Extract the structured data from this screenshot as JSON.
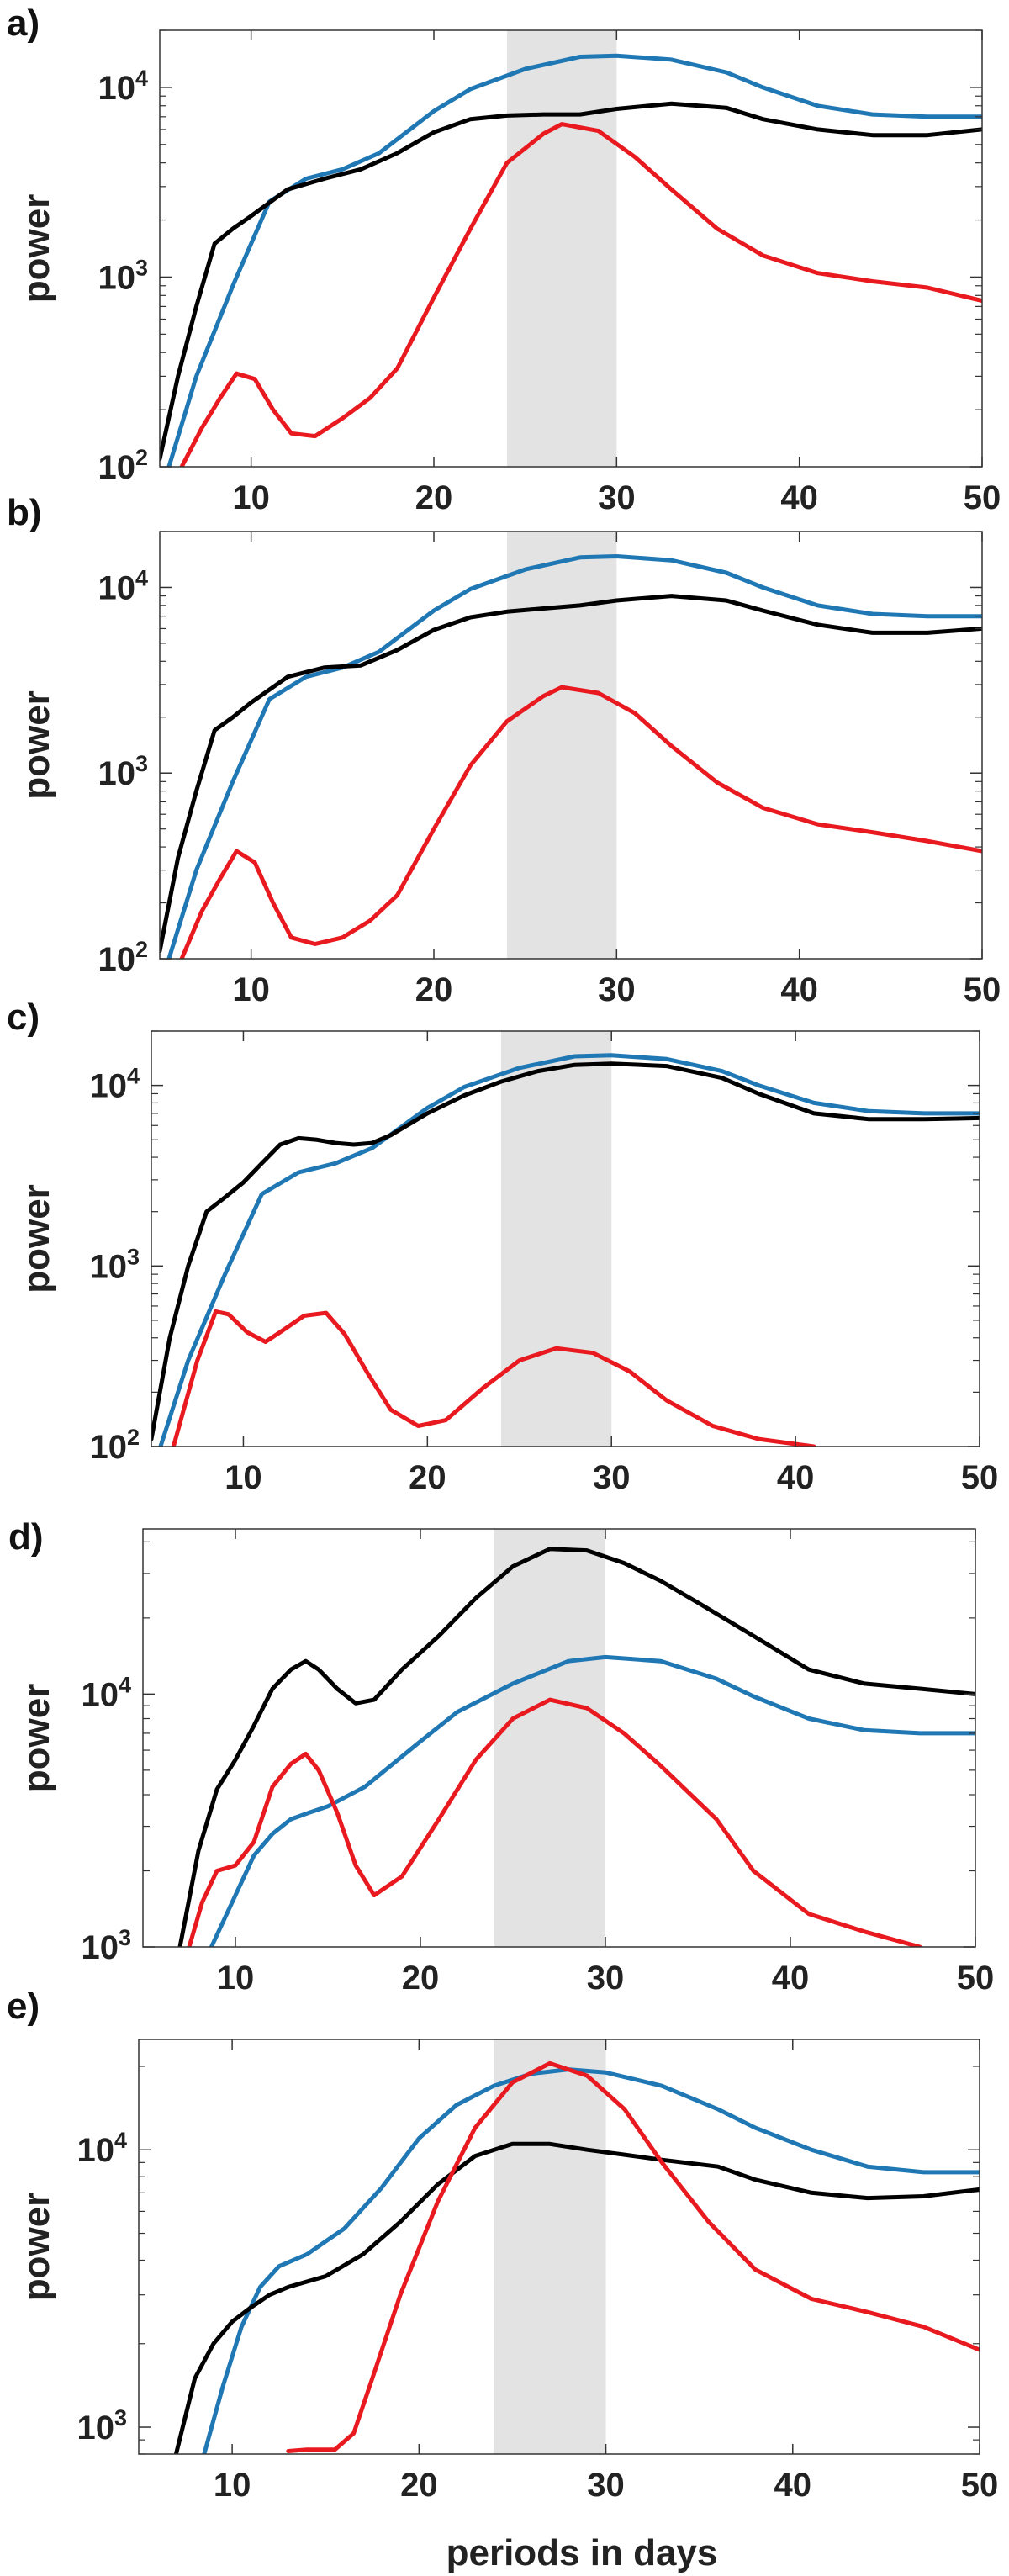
{
  "figure": {
    "xlabel": "periods in days",
    "ylabel": "power",
    "colors": {
      "blue": "#1f77b4",
      "black": "#000000",
      "red": "#e8191f",
      "shade": "#e3e3e3",
      "axis": "#333333"
    }
  },
  "chart_data": [
    {
      "type": "line",
      "panel_label": "a)",
      "ylabel": "power",
      "xlabel": "",
      "xlim": [
        5,
        50
      ],
      "ylim": [
        100,
        20000
      ],
      "yscale": "log",
      "x_ticks": [
        10,
        20,
        30,
        40,
        50
      ],
      "y_ticks": [
        {
          "value": 100,
          "base": "10",
          "exp": "2"
        },
        {
          "value": 1000,
          "base": "10",
          "exp": "3"
        },
        {
          "value": 10000,
          "base": "10",
          "exp": "4"
        }
      ],
      "shaded_region": [
        24,
        30
      ],
      "grid": false,
      "series": [
        {
          "color": "#1f77b4",
          "x": [
            5.5,
            7,
            9,
            11,
            13,
            15,
            17,
            20,
            22,
            25,
            28,
            30,
            33,
            36,
            38,
            41,
            44,
            47,
            50
          ],
          "y": [
            100,
            300,
            900,
            2500,
            3300,
            3700,
            4500,
            7500,
            9800,
            12500,
            14500,
            14700,
            14000,
            12000,
            10000,
            8000,
            7200,
            7000,
            7000
          ]
        },
        {
          "color": "#000000",
          "x": [
            5,
            6,
            7,
            8,
            9,
            10,
            12,
            14,
            16,
            18,
            20,
            22,
            24,
            26,
            28,
            30,
            33,
            36,
            38,
            41,
            44,
            47,
            50
          ],
          "y": [
            110,
            300,
            700,
            1500,
            1800,
            2100,
            2900,
            3300,
            3700,
            4500,
            5800,
            6800,
            7100,
            7200,
            7200,
            7700,
            8200,
            7800,
            6800,
            6000,
            5600,
            5600,
            6000
          ]
        },
        {
          "color": "#e8191f",
          "x": [
            6.2,
            7.3,
            8.3,
            9.2,
            10.2,
            11.2,
            12.2,
            13.5,
            15,
            16.5,
            18,
            20,
            22,
            24,
            26,
            27,
            29,
            31,
            33,
            35.5,
            38,
            41,
            44,
            47,
            50
          ],
          "y": [
            100,
            160,
            230,
            310,
            290,
            200,
            150,
            145,
            180,
            230,
            330,
            780,
            1800,
            4000,
            5700,
            6400,
            5900,
            4300,
            2900,
            1800,
            1300,
            1050,
            950,
            880,
            750
          ]
        }
      ]
    },
    {
      "type": "line",
      "panel_label": "b)",
      "ylabel": "power",
      "xlabel": "",
      "xlim": [
        5,
        50
      ],
      "ylim": [
        100,
        20000
      ],
      "yscale": "log",
      "x_ticks": [
        10,
        20,
        30,
        40,
        50
      ],
      "y_ticks": [
        {
          "value": 100,
          "base": "10",
          "exp": "2"
        },
        {
          "value": 1000,
          "base": "10",
          "exp": "3"
        },
        {
          "value": 10000,
          "base": "10",
          "exp": "4"
        }
      ],
      "shaded_region": [
        24,
        30
      ],
      "grid": false,
      "series": [
        {
          "color": "#1f77b4",
          "x": [
            5.5,
            7,
            9,
            11,
            13,
            15,
            17,
            20,
            22,
            25,
            28,
            30,
            33,
            36,
            38,
            41,
            44,
            47,
            50
          ],
          "y": [
            100,
            300,
            900,
            2500,
            3300,
            3700,
            4500,
            7500,
            9800,
            12500,
            14500,
            14700,
            14000,
            12000,
            10000,
            8000,
            7200,
            7000,
            7000
          ]
        },
        {
          "color": "#000000",
          "x": [
            5,
            6,
            7,
            8,
            9,
            10,
            12,
            14,
            16,
            18,
            20,
            22,
            24,
            26,
            28,
            30,
            33,
            36,
            38,
            41,
            44,
            47,
            50
          ],
          "y": [
            110,
            350,
            800,
            1700,
            2000,
            2400,
            3300,
            3700,
            3800,
            4600,
            5900,
            6900,
            7400,
            7700,
            8000,
            8500,
            9000,
            8500,
            7500,
            6300,
            5700,
            5700,
            6000
          ]
        },
        {
          "color": "#e8191f",
          "x": [
            6.2,
            7.3,
            8.3,
            9.2,
            10.2,
            11.2,
            12.2,
            13.5,
            15,
            16.5,
            18,
            20,
            22,
            24,
            26,
            27,
            29,
            31,
            33,
            35.5,
            38,
            41,
            44,
            47,
            50
          ],
          "y": [
            100,
            180,
            270,
            380,
            330,
            200,
            130,
            120,
            130,
            160,
            220,
            500,
            1100,
            1900,
            2600,
            2900,
            2700,
            2100,
            1400,
            890,
            650,
            530,
            480,
            430,
            380
          ]
        }
      ]
    },
    {
      "type": "line",
      "panel_label": "c)",
      "ylabel": "power",
      "xlabel": "",
      "xlim": [
        5,
        50
      ],
      "ylim": [
        100,
        20000
      ],
      "yscale": "log",
      "x_ticks": [
        10,
        20,
        30,
        40,
        50
      ],
      "y_ticks": [
        {
          "value": 100,
          "base": "10",
          "exp": "2"
        },
        {
          "value": 1000,
          "base": "10",
          "exp": "3"
        },
        {
          "value": 10000,
          "base": "10",
          "exp": "4"
        }
      ],
      "shaded_region": [
        24,
        30
      ],
      "grid": false,
      "series": [
        {
          "color": "#1f77b4",
          "x": [
            5.5,
            7,
            9,
            11,
            13,
            15,
            17,
            20,
            22,
            25,
            28,
            30,
            33,
            36,
            38,
            41,
            44,
            47,
            50
          ],
          "y": [
            100,
            300,
            900,
            2500,
            3300,
            3700,
            4500,
            7500,
            9800,
            12500,
            14500,
            14700,
            14000,
            12000,
            10000,
            8000,
            7200,
            7000,
            7000
          ]
        },
        {
          "color": "#000000",
          "x": [
            5,
            6,
            7,
            8,
            9,
            10,
            11,
            12,
            13,
            14,
            15,
            16,
            17,
            18,
            20,
            22,
            24,
            26,
            28,
            30,
            33,
            36,
            38,
            41,
            44,
            47,
            50
          ],
          "y": [
            110,
            400,
            1000,
            2000,
            2400,
            2900,
            3700,
            4700,
            5100,
            5000,
            4800,
            4700,
            4800,
            5300,
            7000,
            8800,
            10500,
            12000,
            13000,
            13200,
            12800,
            11000,
            9000,
            7000,
            6500,
            6500,
            6600
          ]
        },
        {
          "color": "#e8191f",
          "x": [
            6.2,
            7.5,
            8.5,
            9.2,
            10.2,
            11.2,
            12,
            13.3,
            14.5,
            15.5,
            16.8,
            18,
            19.5,
            21,
            23,
            25,
            27,
            29,
            31,
            33,
            35.5,
            38,
            41
          ],
          "y": [
            100,
            300,
            560,
            540,
            430,
            380,
            430,
            530,
            550,
            420,
            250,
            160,
            130,
            140,
            210,
            300,
            350,
            330,
            260,
            180,
            130,
            110,
            100
          ]
        }
      ]
    },
    {
      "type": "line",
      "panel_label": "d)",
      "ylabel": "power",
      "xlabel": "",
      "xlim": [
        5,
        50
      ],
      "ylim": [
        1000,
        45000
      ],
      "yscale": "log",
      "x_ticks": [
        10,
        20,
        30,
        40,
        50
      ],
      "y_ticks": [
        {
          "value": 1000,
          "base": "10",
          "exp": "3"
        },
        {
          "value": 10000,
          "base": "10",
          "exp": "4"
        }
      ],
      "shaded_region": [
        24,
        30
      ],
      "grid": false,
      "series": [
        {
          "color": "#1f77b4",
          "x": [
            8.7,
            10,
            11,
            12,
            13,
            14,
            15,
            17,
            20,
            22,
            25,
            28,
            30,
            33,
            36,
            38,
            41,
            44,
            47,
            50
          ],
          "y": [
            1000,
            1600,
            2300,
            2800,
            3200,
            3400,
            3600,
            4300,
            6500,
            8500,
            11000,
            13500,
            14000,
            13500,
            11500,
            9800,
            8000,
            7200,
            7000,
            7000
          ]
        },
        {
          "color": "#000000",
          "x": [
            7.0,
            8,
            9,
            10,
            11,
            12,
            13,
            13.8,
            14.5,
            15.5,
            16.5,
            17.5,
            19,
            21,
            23,
            25,
            27,
            29,
            31,
            33,
            35,
            38,
            41,
            44,
            47,
            50
          ],
          "y": [
            1000,
            2400,
            4200,
            5500,
            7500,
            10500,
            12500,
            13500,
            12500,
            10500,
            9200,
            9500,
            12500,
            17000,
            24000,
            32000,
            37500,
            37000,
            33000,
            28000,
            23000,
            17000,
            12500,
            11000,
            10500,
            10000
          ]
        },
        {
          "color": "#e8191f",
          "x": [
            7.5,
            8.2,
            9,
            10,
            11,
            12,
            13,
            13.8,
            14.5,
            15.5,
            16.5,
            17.5,
            19,
            21,
            23,
            25,
            27,
            29,
            31,
            33,
            36,
            38,
            41,
            44,
            47
          ],
          "y": [
            1000,
            1500,
            2000,
            2100,
            2600,
            4300,
            5300,
            5800,
            5000,
            3400,
            2100,
            1600,
            1900,
            3200,
            5500,
            8000,
            9500,
            8800,
            7000,
            5200,
            3200,
            2000,
            1350,
            1150,
            1000
          ]
        }
      ]
    },
    {
      "type": "line",
      "panel_label": "e)",
      "ylabel": "power",
      "xlabel": "periods in days",
      "xlim": [
        5,
        50
      ],
      "ylim": [
        800,
        25000
      ],
      "yscale": "log",
      "x_ticks": [
        10,
        20,
        30,
        40,
        50
      ],
      "y_ticks": [
        {
          "value": 1000,
          "base": "10",
          "exp": "3"
        },
        {
          "value": 10000,
          "base": "10",
          "exp": "4"
        }
      ],
      "shaded_region": [
        24,
        30
      ],
      "grid": false,
      "series": [
        {
          "color": "#1f77b4",
          "x": [
            8.5,
            9.5,
            10.5,
            11.5,
            12.5,
            14,
            16,
            18,
            20,
            22,
            24,
            26,
            28,
            30,
            33,
            36,
            38,
            41,
            44,
            47,
            50
          ],
          "y": [
            800,
            1400,
            2300,
            3200,
            3800,
            4200,
            5200,
            7300,
            11000,
            14500,
            17000,
            18800,
            19500,
            19000,
            17000,
            14000,
            12000,
            10000,
            8700,
            8300,
            8300
          ]
        },
        {
          "color": "#000000",
          "x": [
            7.0,
            8,
            9,
            10,
            11,
            12,
            13,
            15,
            17,
            19,
            21,
            23,
            25,
            27,
            29,
            31,
            33,
            36,
            38,
            41,
            44,
            47,
            50
          ],
          "y": [
            800,
            1500,
            2000,
            2400,
            2700,
            3000,
            3200,
            3500,
            4200,
            5500,
            7500,
            9500,
            10500,
            10500,
            10000,
            9600,
            9200,
            8700,
            7800,
            7000,
            6700,
            6800,
            7200
          ]
        },
        {
          "color": "#e8191f",
          "x": [
            13,
            14,
            15.5,
            16.5,
            17.5,
            19,
            21,
            23,
            25,
            27,
            29,
            31,
            33,
            35.5,
            38,
            41,
            44,
            47,
            50
          ],
          "y": [
            820,
            830,
            830,
            950,
            1500,
            3000,
            6500,
            12000,
            17500,
            20500,
            18500,
            14000,
            9000,
            5500,
            3700,
            2900,
            2600,
            2300,
            1900
          ]
        }
      ]
    }
  ]
}
